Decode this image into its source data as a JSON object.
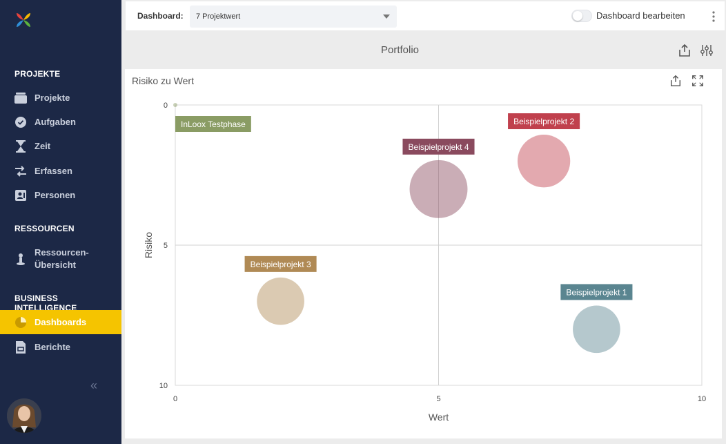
{
  "sidebar": {
    "sections": [
      {
        "title": "PROJEKTE"
      },
      {
        "title": "RESSOURCEN"
      },
      {
        "title": "BUSINESS INTELLIGENCE"
      }
    ],
    "items": [
      {
        "label": "Projekte",
        "icon": "folder-icon"
      },
      {
        "label": "Aufgaben",
        "icon": "check-circle-icon"
      },
      {
        "label": "Zeit",
        "icon": "hourglass-icon"
      },
      {
        "label": "Erfassen",
        "icon": "swap-arrows-icon"
      },
      {
        "label": "Personen",
        "icon": "contact-card-icon"
      },
      {
        "label": "Ressourcen-",
        "label2": "Übersicht",
        "icon": "person-pin-icon"
      },
      {
        "label": "Dashboards",
        "icon": "pie-chart-icon",
        "active": true
      },
      {
        "label": "Berichte",
        "icon": "report-icon"
      }
    ],
    "collapse_icon": "double-chevron-left-icon",
    "accent": "#f5c400",
    "background": "#1c2846"
  },
  "topbar": {
    "dashboard_label": "Dashboard:",
    "dashboard_value": "7 Projektwert",
    "edit_label": "Dashboard bearbeiten",
    "edit_enabled": false
  },
  "portfolio": {
    "title": "Portfolio"
  },
  "card": {
    "title": "Risiko zu Wert"
  },
  "chart_data": {
    "type": "scatter",
    "title": "Risiko zu Wert",
    "xlabel": "Wert",
    "ylabel": "Risiko",
    "xlim": [
      0,
      10
    ],
    "ylim": [
      0,
      10
    ],
    "y_inverted": true,
    "xticks": [
      "0",
      "5",
      "10"
    ],
    "yticks": [
      "0",
      "5",
      "10"
    ],
    "grid": true,
    "points": [
      {
        "name": "InLoox Testphase",
        "x": 0,
        "y": 0,
        "r": 0.05,
        "color": "#8a9c64"
      },
      {
        "name": "Beispielprojekt 2",
        "x": 7,
        "y": 2,
        "r": 1.0,
        "color": "#c0404d"
      },
      {
        "name": "Beispielprojekt 4",
        "x": 5,
        "y": 3,
        "r": 1.1,
        "color": "#8a4a5e"
      },
      {
        "name": "Beispielprojekt 3",
        "x": 2,
        "y": 7,
        "r": 0.9,
        "color": "#b08a55"
      },
      {
        "name": "Beispielprojekt 1",
        "x": 8,
        "y": 8,
        "r": 0.9,
        "color": "#5a8590"
      }
    ]
  }
}
